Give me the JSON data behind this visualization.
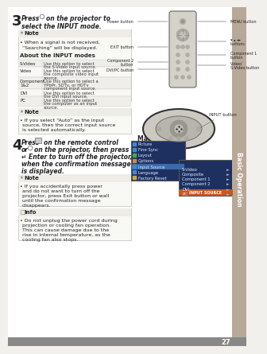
{
  "page_num": "27",
  "bg_color": "#f2f0ec",
  "sidebar_color": "#b8a898",
  "sidebar_text": "Basic Operation",
  "content_bg": "#ffffff",
  "note_bg": "#ffffff",
  "note_border": "#cccccc",
  "table_border": "#bbbbbb",
  "table_col1_bg": "#f0eeea",
  "step3_header": "Press   on the projector to\nselect the INPUT mode.",
  "note1_title": "Note",
  "note1_text": "When a signal is not received,\n“Searching” will be displayed.",
  "input_modes_title": "About the INPUT modes",
  "input_modes": [
    [
      "S-Video",
      "Use this option to select\nthe S-Video input source."
    ],
    [
      "Video",
      "Use this option to select\nthe composite video input\nsource."
    ],
    [
      "Component\n1&2",
      "Use this option to select a\nYPbPr, SDTv, or HDTv\ncomponent input source."
    ],
    [
      "DVI",
      "Use this option to select\nthe DVI input source."
    ],
    [
      "PC",
      "Use this option to select\nthe computer as an input\nsource."
    ]
  ],
  "note2_title": "Note",
  "note2_text": "If you select “Auto” as the input\nsource, then the correct input source\nis selected automatically.",
  "step4_header_lines": [
    "Press      on the remote control",
    "or      on the projector, then press",
    "↵ Enter to turn off the projector,",
    "when the confirmation message",
    "is displayed."
  ],
  "note3_title": "Note",
  "note3_text": "If you accidentally press power\nand do not want to turn off the\nprojector, press Exit button or wall\nuntil the confirmation message\ndisappears.",
  "info_title": "Info",
  "info_text": "Do not unplug the power cord during\nprojection or cooling fan operation.\nThis can cause damage due to the\nrise in internal temperature, as the\ncooling fan also stops.",
  "remote_left_labels": [
    "Power button",
    "EXIT button",
    "Component 2\nbutton",
    "DVI/PC button"
  ],
  "remote_right_labels": [
    "MENU button",
    "▾ ▴ ◂▸\nbuttons",
    "Component 1\nbutton",
    "Video/\nS-Video button"
  ],
  "input_button_label": "INPUT button",
  "main_menu_title": "Main Menu",
  "main_menu_items": [
    "Picture",
    "Fine Sync",
    "Layout",
    "Options",
    "Input Source",
    "Language",
    "Factory Reset"
  ],
  "submenu_header": "INPUT SOURCE",
  "submenu_items": [
    "S-Video",
    "Composite",
    "Component 1",
    "Component 2",
    "DVI",
    "PC"
  ]
}
